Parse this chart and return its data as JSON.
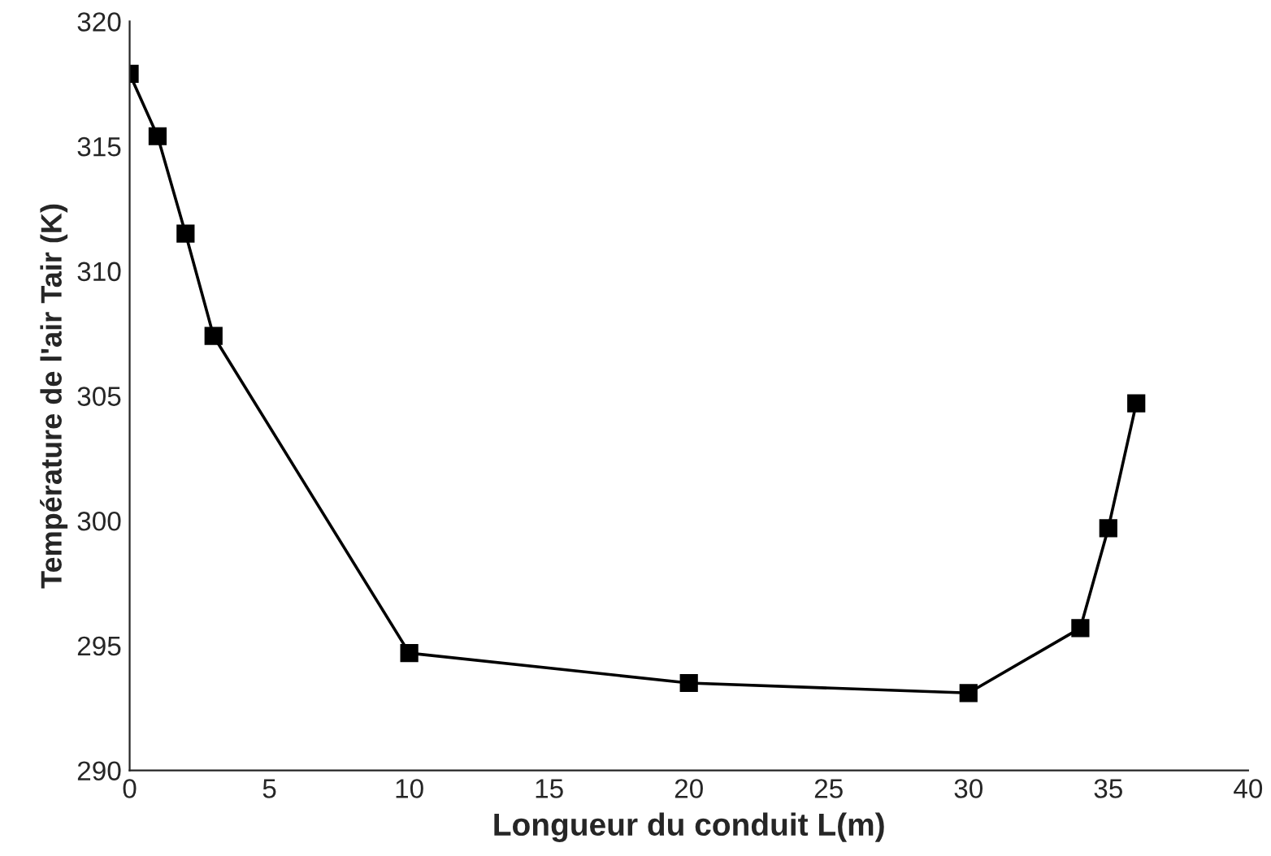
{
  "chart_data": {
    "type": "line",
    "xlabel": "Longueur du conduit L(m)",
    "ylabel": "Température de l'air Tair (K)",
    "x": [
      0,
      1,
      2,
      3,
      10,
      20,
      30,
      34,
      35,
      36
    ],
    "series": [
      {
        "color": "#000000",
        "values": [
          317.9,
          315.4,
          311.5,
          307.4,
          294.7,
          293.5,
          293.1,
          295.7,
          299.7,
          304.7
        ]
      }
    ],
    "xlim": [
      0,
      40
    ],
    "xticks": [
      0,
      5,
      10,
      15,
      20,
      25,
      30,
      35,
      40
    ],
    "ylim": [
      290,
      320
    ],
    "yticks": [
      290,
      295,
      300,
      305,
      310,
      315,
      320
    ],
    "marker": "square",
    "line_style": "solid",
    "grid": false,
    "legend": false
  }
}
